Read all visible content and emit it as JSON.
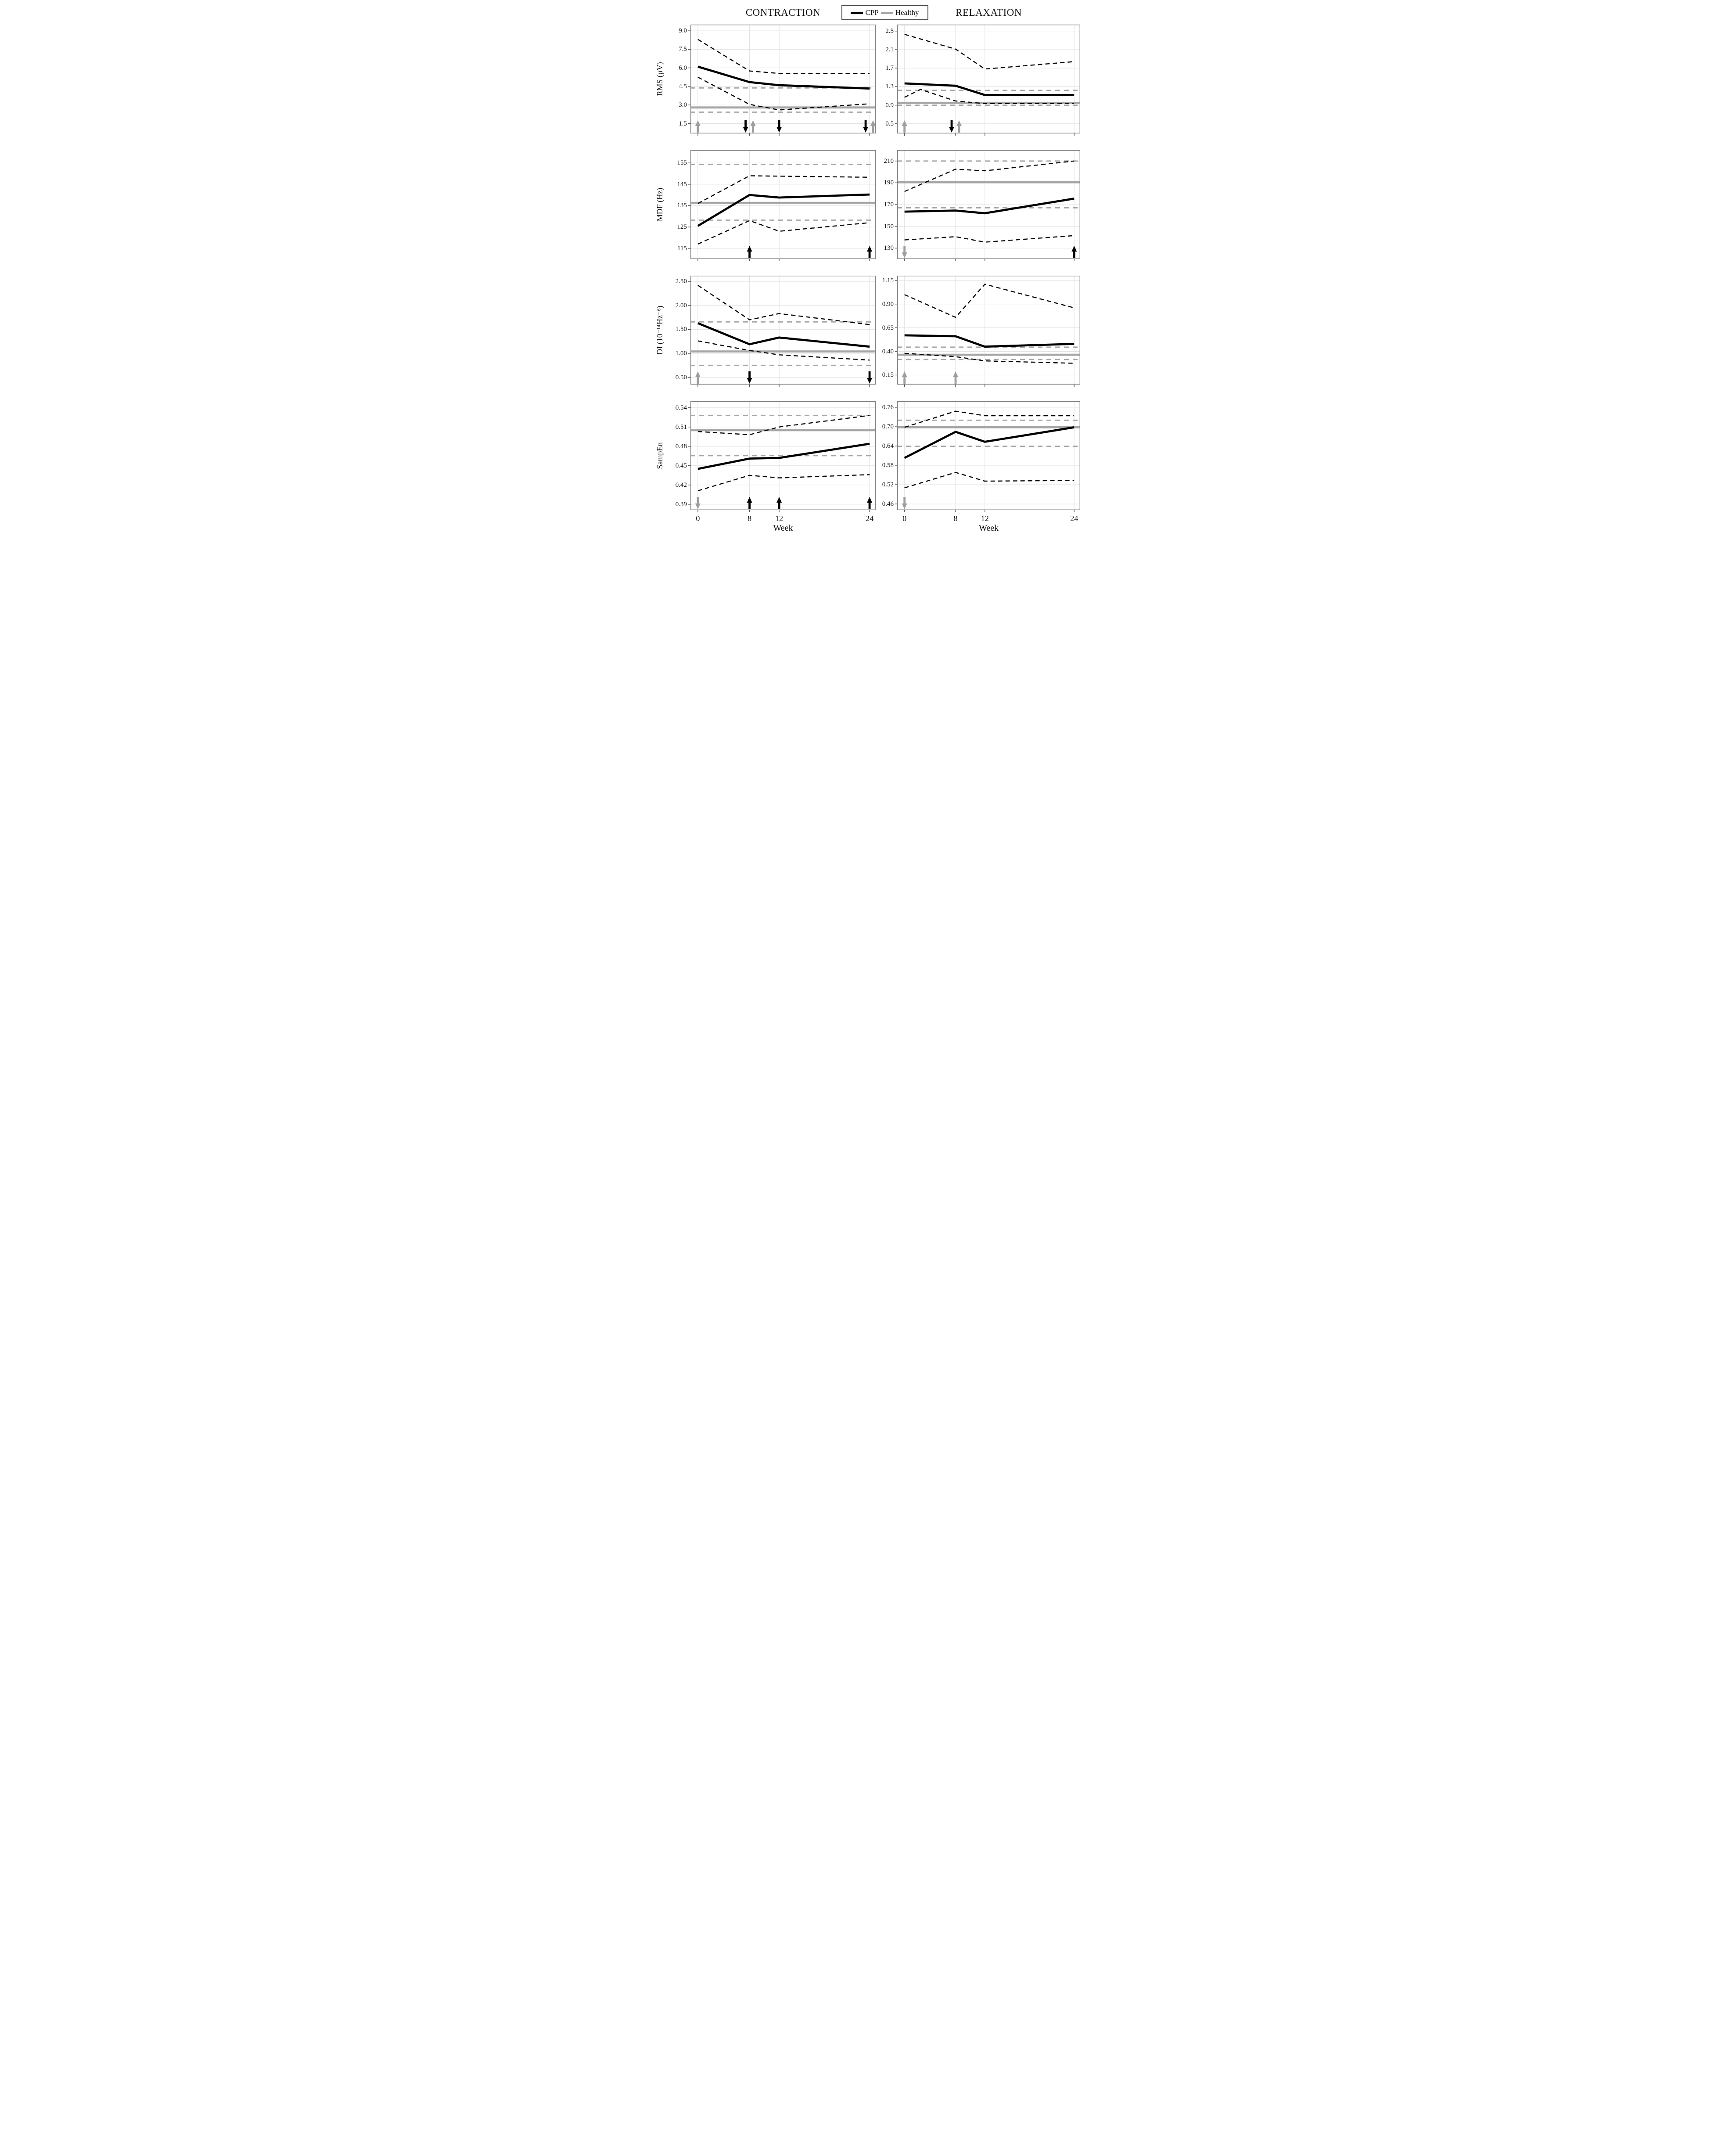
{
  "header": {
    "left_title": "CONTRACTION",
    "right_title": "RELAXATION"
  },
  "legend": {
    "items": [
      {
        "label": "CPP",
        "color": "#000000"
      },
      {
        "label": "Healthy",
        "color": "#a6a6a6"
      }
    ]
  },
  "x_axis": {
    "xlabel": "Week",
    "ticks": [
      0,
      8,
      12,
      24
    ],
    "tick_labels": [
      "0",
      "8",
      "12",
      "24"
    ],
    "fractions": [
      0.04,
      0.319,
      0.479,
      0.967
    ]
  },
  "colors": {
    "cpp": "#000000",
    "healthy": "#a6a6a6",
    "grid": "#e0e0e0",
    "border": "#7d7d7d",
    "tick": "#4a4a4a",
    "arrow_black": "#000000",
    "arrow_gray": "#9e9e9e"
  },
  "chart_data": [
    {
      "id": "rms-contraction",
      "type": "line",
      "measure": "RMS",
      "condition": "CONTRACTION",
      "ylabel": "RMS (μV)",
      "yticks": [
        1.5,
        3.0,
        4.5,
        6.0,
        7.5,
        9.0
      ],
      "ytick_labels": [
        "1.5",
        "3.0",
        "4.5",
        "6.0",
        "7.5",
        "9.0"
      ],
      "ylim": [
        0.7,
        9.5
      ],
      "x_weeks": [
        0,
        8,
        12,
        24
      ],
      "series": {
        "cpp_mean": [
          6.1,
          4.85,
          4.6,
          4.33
        ],
        "cpp_upper": [
          8.3,
          5.75,
          5.55,
          5.55
        ],
        "cpp_lower": [
          5.25,
          3.05,
          2.6,
          3.1
        ],
        "healthy_mean": 2.8,
        "healthy_upper": 4.38,
        "healthy_lower": 2.42
      },
      "arrows": [
        {
          "week": 0,
          "dir": "up",
          "color": "gray"
        },
        {
          "week": 8,
          "dir": "down",
          "color": "black",
          "dx": -9
        },
        {
          "week": 8,
          "dir": "up",
          "color": "gray",
          "dx": 8
        },
        {
          "week": 12,
          "dir": "down",
          "color": "black"
        },
        {
          "week": 24,
          "dir": "down",
          "color": "black",
          "dx": -9
        },
        {
          "week": 24,
          "dir": "up",
          "color": "gray",
          "dx": 8
        }
      ]
    },
    {
      "id": "rms-relaxation",
      "type": "line",
      "measure": "RMS",
      "condition": "RELAXATION",
      "ylabel": "",
      "yticks": [
        0.5,
        0.9,
        1.3,
        1.7,
        2.1,
        2.5
      ],
      "ytick_labels": [
        "0.5",
        "0.9",
        "1.3",
        "1.7",
        "2.1",
        "2.5"
      ],
      "ylim": [
        0.29,
        2.64
      ],
      "x_weeks": [
        0,
        8,
        12,
        24
      ],
      "series": {
        "cpp_mean": [
          1.37,
          1.32,
          1.12,
          1.12
        ],
        "cpp_upper": [
          2.43,
          2.11,
          1.68,
          1.84
        ],
        "cpp_lower_x": [
          0,
          2.5,
          8,
          12,
          24
        ],
        "cpp_lower": [
          1.07,
          1.24,
          0.99,
          0.935,
          0.94
        ],
        "healthy_mean": 0.95,
        "healthy_upper": 1.22,
        "healthy_lower": 0.9
      },
      "arrows": [
        {
          "week": 0,
          "dir": "up",
          "color": "gray"
        },
        {
          "week": 8,
          "dir": "down",
          "color": "black",
          "dx": -9
        },
        {
          "week": 8,
          "dir": "up",
          "color": "gray",
          "dx": 8
        }
      ]
    },
    {
      "id": "mdf-contraction",
      "type": "line",
      "measure": "MDF",
      "condition": "CONTRACTION",
      "ylabel": "MDF (Hz)",
      "yticks": [
        115,
        125,
        135,
        145,
        155
      ],
      "ytick_labels": [
        "115",
        "125",
        "135",
        "145",
        "155"
      ],
      "ylim": [
        110,
        161
      ],
      "x_weeks": [
        0,
        8,
        12,
        24
      ],
      "series": {
        "cpp_mean": [
          125.5,
          140,
          138.8,
          140.2
        ],
        "cpp_upper": [
          136,
          149,
          148.8,
          148.3
        ],
        "cpp_lower": [
          117,
          128,
          123,
          127
        ],
        "healthy_mean": 136.3,
        "healthy_upper": 154.3,
        "healthy_lower": 128.2
      },
      "arrows": [
        {
          "week": 8,
          "dir": "up",
          "color": "black"
        },
        {
          "week": 24,
          "dir": "up",
          "color": "black"
        }
      ]
    },
    {
      "id": "mdf-relaxation",
      "type": "line",
      "measure": "MDF",
      "condition": "RELAXATION",
      "ylabel": "",
      "yticks": [
        130,
        150,
        170,
        190,
        210
      ],
      "ytick_labels": [
        "130",
        "150",
        "170",
        "190",
        "210"
      ],
      "ylim": [
        120,
        220
      ],
      "x_weeks": [
        0,
        8,
        12,
        24
      ],
      "series": {
        "cpp_mean": [
          163.5,
          164.5,
          162,
          175.5
        ],
        "cpp_upper": [
          182,
          202.5,
          201,
          210
        ],
        "cpp_lower": [
          137.5,
          140.5,
          135.5,
          141.5
        ],
        "healthy_mean": 190.5,
        "healthy_upper": 210,
        "healthy_lower": 167
      },
      "arrows": [
        {
          "week": 0,
          "dir": "down",
          "color": "gray"
        },
        {
          "week": 24,
          "dir": "up",
          "color": "black"
        }
      ]
    },
    {
      "id": "di-contraction",
      "type": "line",
      "measure": "DI",
      "condition": "CONTRACTION",
      "ylabel": "DI (10⁻¹⁴Hz⁻⁶)",
      "yticks": [
        0.5,
        1.0,
        1.5,
        2.0,
        2.5
      ],
      "ytick_labels": [
        "0.50",
        "1.00",
        "1.50",
        "2.00",
        "2.50"
      ],
      "ylim": [
        0.35,
        2.62
      ],
      "x_weeks": [
        0,
        8,
        12,
        24
      ],
      "series": {
        "cpp_mean": [
          1.63,
          1.19,
          1.33,
          1.14
        ],
        "cpp_upper": [
          2.42,
          1.7,
          1.83,
          1.6
        ],
        "cpp_lower": [
          1.26,
          1.06,
          0.97,
          0.86
        ],
        "healthy_mean": 1.04,
        "healthy_upper": 1.655,
        "healthy_lower": 0.75
      },
      "arrows": [
        {
          "week": 0,
          "dir": "up",
          "color": "gray"
        },
        {
          "week": 8,
          "dir": "down",
          "color": "black"
        },
        {
          "week": 24,
          "dir": "down",
          "color": "black"
        }
      ]
    },
    {
      "id": "di-relaxation",
      "type": "line",
      "measure": "DI",
      "condition": "RELAXATION",
      "ylabel": "",
      "yticks": [
        0.15,
        0.4,
        0.65,
        0.9,
        1.15
      ],
      "ytick_labels": [
        "0.15",
        "0.40",
        "0.65",
        "0.90",
        "1.15"
      ],
      "ylim": [
        0.05,
        1.2
      ],
      "x_weeks": [
        0,
        8,
        12,
        24
      ],
      "series": {
        "cpp_mean": [
          0.57,
          0.56,
          0.45,
          0.48
        ],
        "cpp_upper": [
          1.0,
          0.76,
          1.11,
          0.86
        ],
        "cpp_lower": [
          0.38,
          0.345,
          0.3,
          0.275
        ],
        "healthy_mean": 0.365,
        "healthy_upper": 0.445,
        "healthy_lower": 0.315
      },
      "arrows": [
        {
          "week": 0,
          "dir": "up",
          "color": "gray"
        },
        {
          "week": 8,
          "dir": "up",
          "color": "gray"
        }
      ]
    },
    {
      "id": "sampen-contraction",
      "type": "line",
      "measure": "SampEn",
      "condition": "CONTRACTION",
      "ylabel": "SampEn",
      "yticks": [
        0.39,
        0.42,
        0.45,
        0.48,
        0.51,
        0.54
      ],
      "ytick_labels": [
        "0.39",
        "0.42",
        "0.45",
        "0.48",
        "0.51",
        "0.54"
      ],
      "ylim": [
        0.381,
        0.55
      ],
      "x_weeks": [
        0,
        8,
        12,
        24
      ],
      "series": {
        "cpp_mean": [
          0.445,
          0.461,
          0.462,
          0.484
        ],
        "cpp_upper": [
          0.503,
          0.498,
          0.51,
          0.528
        ],
        "cpp_lower": [
          0.411,
          0.435,
          0.431,
          0.436
        ],
        "healthy_mean": 0.505,
        "healthy_upper": 0.528,
        "healthy_lower": 0.4655
      },
      "arrows": [
        {
          "week": 0,
          "dir": "down",
          "color": "gray"
        },
        {
          "week": 8,
          "dir": "up",
          "color": "black"
        },
        {
          "week": 12,
          "dir": "up",
          "color": "black"
        },
        {
          "week": 24,
          "dir": "up",
          "color": "black"
        }
      ]
    },
    {
      "id": "sampen-relaxation",
      "type": "line",
      "measure": "SampEn",
      "condition": "RELAXATION",
      "ylabel": "",
      "yticks": [
        0.46,
        0.52,
        0.58,
        0.64,
        0.7,
        0.76
      ],
      "ytick_labels": [
        "0.46",
        "0.52",
        "0.58",
        "0.64",
        "0.70",
        "0.76"
      ],
      "ylim": [
        0.441,
        0.779
      ],
      "x_weeks": [
        0,
        8,
        12,
        24
      ],
      "series": {
        "cpp_mean": [
          0.603,
          0.684,
          0.653,
          0.698
        ],
        "cpp_upper": [
          0.698,
          0.748,
          0.734,
          0.734
        ],
        "cpp_lower": [
          0.51,
          0.558,
          0.531,
          0.533
        ],
        "healthy_mean": 0.698,
        "healthy_upper": 0.72,
        "healthy_lower": 0.639
      },
      "arrows": [
        {
          "week": 0,
          "dir": "down",
          "color": "gray"
        }
      ]
    }
  ]
}
